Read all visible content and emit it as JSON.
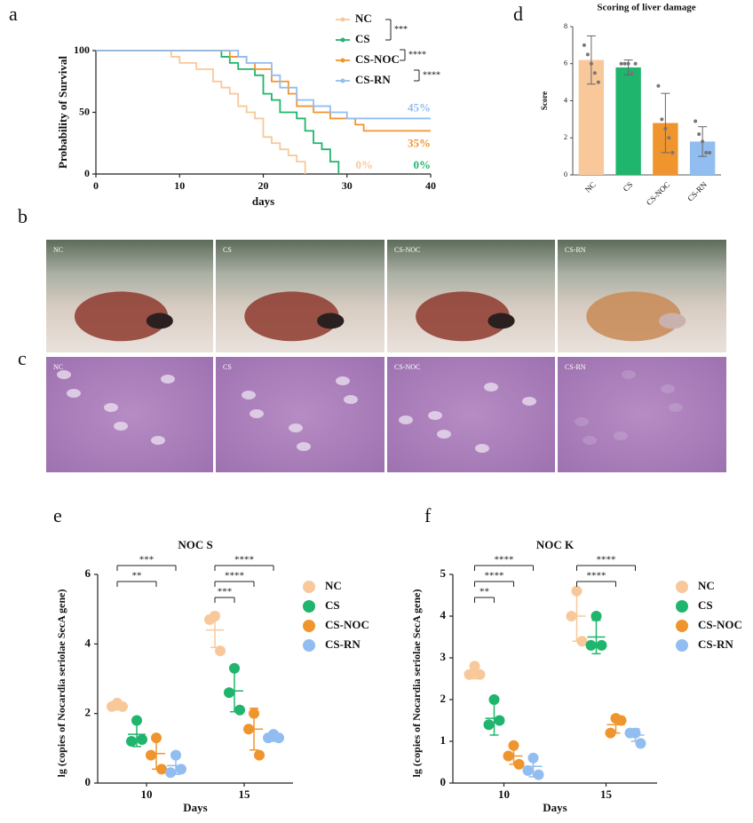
{
  "panel_labels": [
    "a",
    "b",
    "c",
    "d",
    "e",
    "f"
  ],
  "photos": {
    "gross": [
      "NC",
      "CS",
      "CS-NOC",
      "CS-RN"
    ],
    "histology": [
      "NC",
      "CS",
      "CS-NOC",
      "CS-RN"
    ]
  },
  "chart_data": [
    {
      "type": "step",
      "xlabel": "days",
      "ylabel": "Probability of Survival",
      "xlim": [
        0,
        40
      ],
      "ylim": [
        0,
        100
      ],
      "xticks": [
        0,
        10,
        20,
        30,
        40
      ],
      "yticks": [
        0,
        50,
        100
      ],
      "series": [
        {
          "name": "NC",
          "color": "#f8c89a",
          "end_label": "0%",
          "x": [
            0,
            9,
            10,
            12,
            14,
            15,
            16,
            17,
            18,
            19,
            20,
            21,
            22,
            23,
            24,
            25
          ],
          "values": [
            100,
            95,
            90,
            85,
            75,
            70,
            65,
            55,
            50,
            45,
            30,
            25,
            20,
            15,
            10,
            0
          ]
        },
        {
          "name": "CS",
          "color": "#1fb56c",
          "end_label": "0%",
          "x": [
            0,
            15,
            16,
            17,
            19,
            20,
            21,
            22,
            24,
            25,
            26,
            27,
            28,
            29
          ],
          "values": [
            100,
            95,
            90,
            85,
            80,
            65,
            60,
            50,
            45,
            35,
            25,
            20,
            10,
            0
          ]
        },
        {
          "name": "CS-NOC",
          "color": "#f0952e",
          "end_label": "35%",
          "x": [
            0,
            16,
            18,
            19,
            21,
            23,
            24,
            26,
            28,
            31,
            32,
            40
          ],
          "values": [
            100,
            95,
            90,
            85,
            75,
            65,
            55,
            50,
            45,
            40,
            35,
            35
          ]
        },
        {
          "name": "CS-RN",
          "color": "#92bdf0",
          "end_label": "45%",
          "x": [
            0,
            17,
            18,
            21,
            22,
            24,
            26,
            28,
            30,
            40
          ],
          "values": [
            100,
            95,
            90,
            80,
            70,
            60,
            55,
            50,
            45,
            45
          ]
        }
      ],
      "comparisons": [
        {
          "between": [
            "NC",
            "CS"
          ],
          "label": "***"
        },
        {
          "between": [
            "CS",
            "CS-NOC"
          ],
          "label": "****"
        },
        {
          "between": [
            "CS-NOC",
            "CS-RN"
          ],
          "label": "****"
        }
      ]
    },
    {
      "type": "bar",
      "title": "Scoring of liver damage",
      "ylabel": "Score",
      "categories": [
        "NC",
        "CS",
        "CS-NOC",
        "CS-RN"
      ],
      "values": [
        6.2,
        5.8,
        2.8,
        1.8
      ],
      "errors": [
        1.3,
        0.4,
        1.6,
        0.8
      ],
      "colors": [
        "#f8c89a",
        "#1fb56c",
        "#f0952e",
        "#92bdf0"
      ],
      "points": [
        [
          7,
          6.5,
          6,
          5.5,
          5
        ],
        [
          6,
          6,
          6,
          5.5,
          6
        ],
        [
          4.8,
          3,
          2.5,
          2,
          1.2
        ],
        [
          2.9,
          2.2,
          1.8,
          1.2,
          1.2
        ]
      ],
      "ylim": [
        0,
        8
      ],
      "yticks": [
        0,
        2,
        4,
        6,
        8
      ]
    },
    {
      "type": "dot",
      "title": "NOC S",
      "xlabel": "Days",
      "ylabel": "lg (copies of Nocardia seriolae SecA gene)",
      "categories": [
        "10",
        "15"
      ],
      "ylim": [
        0,
        6
      ],
      "yticks": [
        0,
        2,
        4,
        6
      ],
      "series": [
        {
          "name": "NC",
          "color": "#f8c89a",
          "points": [
            [
              2.3,
              2.2,
              2.2
            ],
            [
              4.8,
              4.7,
              3.8
            ]
          ],
          "mean": [
            2.2,
            4.4
          ],
          "sd": [
            0.1,
            0.5
          ]
        },
        {
          "name": "CS",
          "color": "#1fb56c",
          "points": [
            [
              1.8,
              1.2,
              1.25
            ],
            [
              3.3,
              2.6,
              2.1
            ]
          ],
          "mean": [
            1.4,
            2.65
          ],
          "sd": [
            0.35,
            0.6
          ]
        },
        {
          "name": "CS-NOC",
          "color": "#f0952e",
          "points": [
            [
              1.3,
              0.8,
              0.4
            ],
            [
              2,
              1.55,
              0.8
            ]
          ],
          "mean": [
            0.85,
            1.55
          ],
          "sd": [
            0.45,
            0.6
          ]
        },
        {
          "name": "CS-RN",
          "color": "#92bdf0",
          "points": [
            [
              0.8,
              0.3,
              0.4
            ],
            [
              1.4,
              1.3,
              1.3
            ]
          ],
          "mean": [
            0.5,
            1.3
          ],
          "sd": [
            0.25,
            0.1
          ]
        }
      ],
      "comparisons": [
        {
          "category": "10",
          "between": [
            "NC",
            "CS-NOC"
          ],
          "label": "**"
        },
        {
          "category": "10",
          "between": [
            "NC",
            "CS-RN"
          ],
          "label": "***"
        },
        {
          "category": "15",
          "between": [
            "NC",
            "CS"
          ],
          "label": "***"
        },
        {
          "category": "15",
          "between": [
            "NC",
            "CS-NOC"
          ],
          "label": "****"
        },
        {
          "category": "15",
          "between": [
            "NC",
            "CS-RN"
          ],
          "label": "****"
        }
      ]
    },
    {
      "type": "dot",
      "title": "NOC K",
      "xlabel": "Days",
      "ylabel": "lg (copies of Nocardia seriolae SecA gene)",
      "categories": [
        "10",
        "15"
      ],
      "ylim": [
        0,
        5
      ],
      "yticks": [
        0,
        1,
        2,
        3,
        4,
        5
      ],
      "series": [
        {
          "name": "NC",
          "color": "#f8c89a",
          "points": [
            [
              2.8,
              2.6,
              2.6
            ],
            [
              4.6,
              4,
              3.4
            ]
          ],
          "mean": [
            2.65,
            4
          ],
          "sd": [
            0.15,
            0.6
          ]
        },
        {
          "name": "CS",
          "color": "#1fb56c",
          "points": [
            [
              2,
              1.4,
              1.5
            ],
            [
              4,
              3.3,
              3.3
            ]
          ],
          "mean": [
            1.55,
            3.5
          ],
          "sd": [
            0.4,
            0.4
          ]
        },
        {
          "name": "CS-NOC",
          "color": "#f0952e",
          "points": [
            [
              0.9,
              0.65,
              0.45
            ],
            [
              1.55,
              1.2,
              1.5
            ]
          ],
          "mean": [
            0.65,
            1.4
          ],
          "sd": [
            0.2,
            0.2
          ]
        },
        {
          "name": "CS-RN",
          "color": "#92bdf0",
          "points": [
            [
              0.6,
              0.3,
              0.2
            ],
            [
              1.2,
              1.2,
              0.95
            ]
          ],
          "mean": [
            0.4,
            1.15
          ],
          "sd": [
            0.25,
            0.15
          ]
        }
      ],
      "comparisons": [
        {
          "category": "10",
          "between": [
            "NC",
            "CS"
          ],
          "label": "**"
        },
        {
          "category": "10",
          "between": [
            "NC",
            "CS-NOC"
          ],
          "label": "****"
        },
        {
          "category": "10",
          "between": [
            "NC",
            "CS-RN"
          ],
          "label": "****"
        },
        {
          "category": "15",
          "between": [
            "NC",
            "CS-NOC"
          ],
          "label": "****"
        },
        {
          "category": "15",
          "between": [
            "NC",
            "CS-RN"
          ],
          "label": "****"
        }
      ]
    }
  ]
}
